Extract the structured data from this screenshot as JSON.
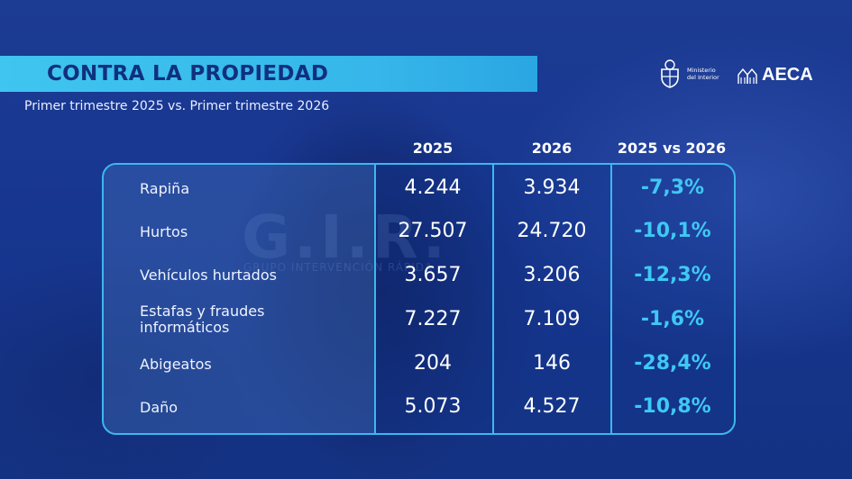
{
  "header": {
    "title": "CONTRA LA PROPIEDAD",
    "subtitle": "Primer trimestre 2025 vs. Primer trimestre 2026"
  },
  "logos": {
    "ministry_line1": "Ministerio",
    "ministry_line2": "del Interior",
    "aeca": "AECA"
  },
  "background": {
    "badge_text": "G.I.R.",
    "badge_sub": "GRUPO INTERVENCIÓN RÁPIDA"
  },
  "table": {
    "columns": [
      "2025",
      "2026",
      "2025 vs 2026"
    ],
    "rows": [
      {
        "label": "Rapiña",
        "v2025": "4.244",
        "v2026": "3.934",
        "change": "-7,3%"
      },
      {
        "label": "Hurtos",
        "v2025": "27.507",
        "v2026": "24.720",
        "change": "-10,1%"
      },
      {
        "label": "Vehículos hurtados",
        "v2025": "3.657",
        "v2026": "3.206",
        "change": "-12,3%"
      },
      {
        "label_line1": "Estafas y fraudes",
        "label_line2": "informáticos",
        "v2025": "7.227",
        "v2026": "7.109",
        "change": "-1,6%"
      },
      {
        "label": "Abigeatos",
        "v2025": "204",
        "v2026": "146",
        "change": "-28,4%"
      },
      {
        "label": "Daño",
        "v2025": "5.073",
        "v2026": "4.527",
        "change": "-10,8%"
      }
    ]
  },
  "colors": {
    "accent": "#3fc8f4",
    "background": "#16358a",
    "title_text": "#10307e"
  }
}
